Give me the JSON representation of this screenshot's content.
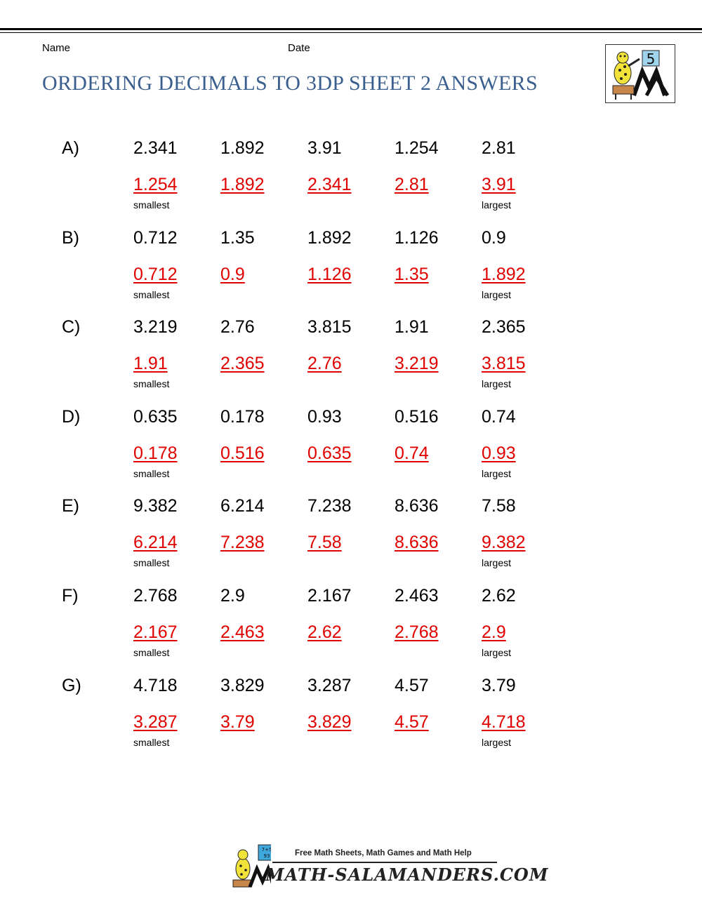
{
  "header": {
    "name_label": "Name",
    "date_label": "Date",
    "title": "ORDERING DECIMALS TO 3DP SHEET 2 ANSWERS",
    "logo_number": "5"
  },
  "colors": {
    "title": "#3a5f8f",
    "answer": "#e00000"
  },
  "labels": {
    "smallest": "smallest",
    "largest": "largest"
  },
  "problems": [
    {
      "label": "A)",
      "numbers": [
        "2.341",
        "1.892",
        "3.91",
        "1.254",
        "2.81"
      ],
      "answers": [
        "1.254",
        "1.892",
        "2.341",
        "2.81",
        "3.91"
      ]
    },
    {
      "label": "B)",
      "numbers": [
        "0.712",
        "1.35",
        "1.892",
        "1.126",
        "0.9"
      ],
      "answers": [
        "0.712",
        "0.9",
        "1.126",
        "1.35",
        "1.892"
      ]
    },
    {
      "label": "C)",
      "numbers": [
        "3.219",
        "2.76",
        "3.815",
        "1.91",
        "2.365"
      ],
      "answers": [
        "1.91",
        "2.365",
        "2.76",
        "3.219",
        "3.815"
      ]
    },
    {
      "label": "D)",
      "numbers": [
        "0.635",
        "0.178",
        "0.93",
        "0.516",
        "0.74"
      ],
      "answers": [
        "0.178",
        "0.516",
        "0.635",
        "0.74",
        "0.93"
      ]
    },
    {
      "label": "E)",
      "numbers": [
        "9.382",
        "6.214",
        "7.238",
        "8.636",
        "7.58"
      ],
      "answers": [
        "6.214",
        "7.238",
        "7.58",
        "8.636",
        "9.382"
      ]
    },
    {
      "label": "F)",
      "numbers": [
        "2.768",
        "2.9",
        "2.167",
        "2.463",
        "2.62"
      ],
      "answers": [
        "2.167",
        "2.463",
        "2.62",
        "2.768",
        "2.9"
      ]
    },
    {
      "label": "G)",
      "numbers": [
        "4.718",
        "3.829",
        "3.287",
        "4.57",
        "3.79"
      ],
      "answers": [
        "3.287",
        "3.79",
        "3.829",
        "4.57",
        "4.718"
      ]
    }
  ],
  "footer": {
    "tagline": "Free Math Sheets, Math Games and Math Help",
    "site": "MATH-SALAMANDERS.COM",
    "logo_badge": "7+5 = 93"
  }
}
